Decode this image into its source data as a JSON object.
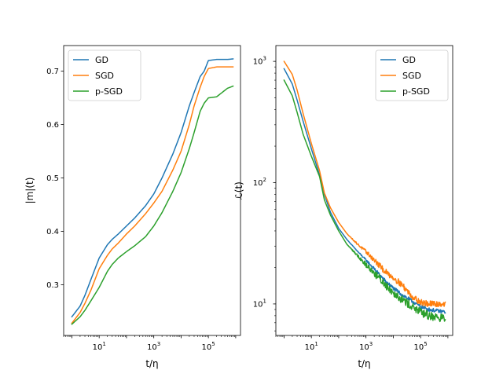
{
  "chart_data": [
    {
      "type": "line",
      "xlabel": "t/η",
      "ylabel": "|m|(t)",
      "xscale": "log",
      "yscale": "linear",
      "xlim": [
        0.5,
        1500000
      ],
      "ylim": [
        0.205,
        0.748
      ],
      "xticks": [
        {
          "value": 10,
          "base": "10",
          "exp": "1"
        },
        {
          "value": 1000,
          "base": "10",
          "exp": "3"
        },
        {
          "value": 100000,
          "base": "10",
          "exp": "5"
        }
      ],
      "yticks": [
        {
          "value": 0.3,
          "label": "0.3"
        },
        {
          "value": 0.4,
          "label": "0.4"
        },
        {
          "value": 0.5,
          "label": "0.5"
        },
        {
          "value": 0.6,
          "label": "0.6"
        },
        {
          "value": 0.7,
          "label": "0.7"
        }
      ],
      "legend": {
        "placement": "top-left"
      },
      "grid": false,
      "series": [
        {
          "name": "GD",
          "color": "#1f77b4",
          "noise": 0,
          "x": [
            1,
            2,
            3,
            5,
            10,
            20,
            30,
            50,
            100,
            200,
            500,
            1000,
            2000,
            5000,
            10000,
            20000,
            30000,
            50000,
            70000,
            100000,
            200000,
            500000,
            800000
          ],
          "y": [
            0.24,
            0.26,
            0.28,
            0.31,
            0.35,
            0.375,
            0.385,
            0.395,
            0.41,
            0.425,
            0.448,
            0.47,
            0.5,
            0.545,
            0.585,
            0.635,
            0.66,
            0.69,
            0.7,
            0.72,
            0.722,
            0.722,
            0.723
          ]
        },
        {
          "name": "SGD",
          "color": "#ff7f0e",
          "noise": 0,
          "x": [
            1,
            2,
            3,
            5,
            10,
            20,
            30,
            50,
            100,
            200,
            500,
            1000,
            2000,
            5000,
            10000,
            20000,
            30000,
            50000,
            70000,
            100000,
            200000,
            500000,
            800000
          ],
          "y": [
            0.228,
            0.248,
            0.265,
            0.29,
            0.33,
            0.355,
            0.367,
            0.378,
            0.395,
            0.41,
            0.433,
            0.453,
            0.475,
            0.515,
            0.55,
            0.6,
            0.635,
            0.67,
            0.69,
            0.705,
            0.708,
            0.708,
            0.708
          ]
        },
        {
          "name": "p-SGD",
          "color": "#2ca02c",
          "noise": 0,
          "x": [
            1,
            2,
            3,
            5,
            10,
            20,
            30,
            50,
            100,
            200,
            500,
            1000,
            2000,
            5000,
            10000,
            20000,
            30000,
            50000,
            70000,
            100000,
            200000,
            500000,
            800000
          ],
          "y": [
            0.226,
            0.24,
            0.252,
            0.27,
            0.295,
            0.325,
            0.338,
            0.35,
            0.362,
            0.373,
            0.39,
            0.41,
            0.435,
            0.475,
            0.51,
            0.555,
            0.585,
            0.625,
            0.64,
            0.65,
            0.652,
            0.668,
            0.672
          ]
        }
      ]
    },
    {
      "type": "line",
      "xlabel": "t/η",
      "ylabel": "ℒ(t)",
      "xscale": "log",
      "yscale": "log",
      "xlim": [
        0.5,
        1500000
      ],
      "ylim": [
        5.5,
        1350
      ],
      "xticks": [
        {
          "value": 10,
          "base": "10",
          "exp": "1"
        },
        {
          "value": 1000,
          "base": "10",
          "exp": "3"
        },
        {
          "value": 100000,
          "base": "10",
          "exp": "5"
        }
      ],
      "yticks": [
        {
          "value": 10,
          "base": "10",
          "exp": "1"
        },
        {
          "value": 100,
          "base": "10",
          "exp": "2"
        },
        {
          "value": 1000,
          "base": "10",
          "exp": "3"
        }
      ],
      "legend": {
        "placement": "top-right"
      },
      "grid": false,
      "series": [
        {
          "name": "GD",
          "color": "#1f77b4",
          "noise": 0.015,
          "x": [
            1,
            2,
            3,
            5,
            10,
            20,
            30,
            50,
            100,
            200,
            500,
            1000,
            2000,
            5000,
            10000,
            20000,
            50000,
            100000,
            200000,
            500000,
            800000
          ],
          "y": [
            870,
            650,
            480,
            320,
            190,
            115,
            80,
            57,
            42,
            34,
            27,
            23,
            19.5,
            15.5,
            13.5,
            12,
            10.5,
            9.5,
            9,
            8.7,
            8.6
          ]
        },
        {
          "name": "SGD",
          "color": "#ff7f0e",
          "noise": 0.025,
          "x": [
            1,
            2,
            3,
            5,
            10,
            20,
            30,
            50,
            100,
            200,
            500,
            1000,
            2000,
            5000,
            10000,
            20000,
            50000,
            100000,
            200000,
            500000,
            800000
          ],
          "y": [
            1000,
            780,
            580,
            370,
            210,
            125,
            82,
            62,
            47,
            38,
            31,
            27,
            23,
            18.5,
            16.5,
            14.5,
            11.5,
            10.3,
            10,
            10,
            10
          ]
        },
        {
          "name": "p-SGD",
          "color": "#2ca02c",
          "noise": 0.035,
          "x": [
            1,
            2,
            3,
            5,
            10,
            20,
            30,
            50,
            100,
            200,
            500,
            1000,
            2000,
            5000,
            10000,
            20000,
            50000,
            100000,
            200000,
            500000,
            800000
          ],
          "y": [
            700,
            520,
            380,
            250,
            165,
            112,
            72,
            54,
            40,
            31,
            25,
            21,
            18,
            14.5,
            12.5,
            11,
            9.5,
            8.5,
            8,
            7.7,
            7.6
          ]
        }
      ]
    }
  ]
}
